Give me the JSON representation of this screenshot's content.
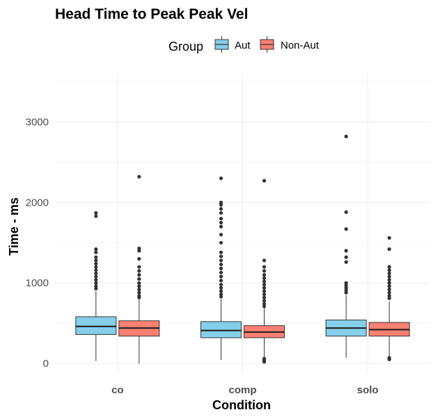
{
  "chart_data": {
    "type": "boxplot",
    "title": "Head Time to Peak Peak Vel",
    "xlabel": "Condition",
    "ylabel": "Time - ms",
    "categories": [
      "co",
      "comp",
      "solo"
    ],
    "ylim": [
      -120,
      3600
    ],
    "yticks": [
      0,
      1000,
      2000,
      3000
    ],
    "grid": true,
    "legend": {
      "title": "Group",
      "position": "top"
    },
    "series": [
      {
        "name": "Aut",
        "color": "#87CEEB",
        "boxes": [
          {
            "category": "co",
            "whisker_low": 30,
            "q1": 360,
            "median": 460,
            "q3": 580,
            "whisker_high": 900,
            "outliers": [
              1870,
              1830,
              1420,
              1380,
              1320,
              1280,
              1240,
              1200,
              1160,
              1120,
              1080,
              1040,
              1000,
              960,
              930
            ]
          },
          {
            "category": "comp",
            "whisker_low": 45,
            "q1": 320,
            "median": 410,
            "q3": 520,
            "whisker_high": 800,
            "outliers": [
              2300,
              2000,
              1970,
              1920,
              1870,
              1800,
              1750,
              1700,
              1600,
              1500,
              1380,
              1330,
              1280,
              1230,
              1180,
              1130,
              1080,
              1030,
              980,
              940,
              900,
              860,
              830
            ]
          },
          {
            "category": "solo",
            "whisker_low": 70,
            "q1": 340,
            "median": 440,
            "q3": 540,
            "whisker_high": 850,
            "outliers": [
              2820,
              1880,
              1670,
              1400,
              1320,
              1260,
              1000,
              970,
              940,
              910,
              880
            ]
          }
        ]
      },
      {
        "name": "Non-Aut",
        "color": "#FA8072",
        "boxes": [
          {
            "category": "co",
            "whisker_low": 0,
            "q1": 340,
            "median": 440,
            "q3": 530,
            "whisker_high": 800,
            "outliers": [
              2320,
              1430,
              1400,
              1300,
              1200,
              1150,
              1100,
              1050,
              1000,
              960,
              920,
              880,
              840,
              820
            ]
          },
          {
            "category": "comp",
            "whisker_low": 60,
            "q1": 320,
            "median": 390,
            "q3": 470,
            "whisker_high": 690,
            "outliers": [
              2270,
              1280,
              1200,
              1150,
              1100,
              1060,
              1020,
              980,
              940,
              900,
              860,
              820,
              780,
              740,
              710,
              60,
              40,
              20
            ]
          },
          {
            "category": "solo",
            "whisker_low": 80,
            "q1": 340,
            "median": 420,
            "q3": 510,
            "whisker_high": 770,
            "outliers": [
              1560,
              1420,
              1200,
              1160,
              1120,
              1080,
              1040,
              1000,
              960,
              920,
              880,
              840,
              810,
              70,
              50
            ]
          }
        ]
      }
    ]
  }
}
